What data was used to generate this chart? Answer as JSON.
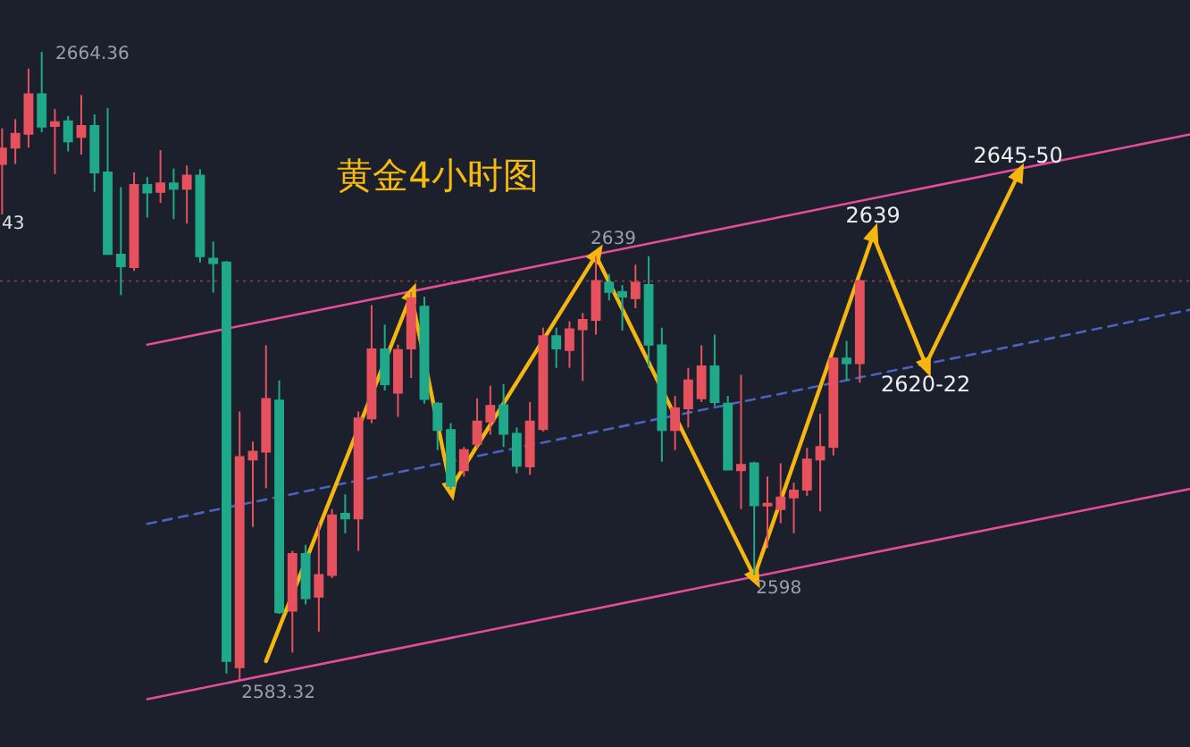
{
  "chart_data": {
    "type": "candlestick",
    "title": "黄金4小时图",
    "categories": [
      null,
      null,
      null,
      null,
      null,
      null,
      null,
      null,
      null,
      null,
      null,
      null,
      null,
      null,
      null,
      null,
      null,
      null,
      null,
      null,
      null,
      null,
      null,
      null,
      null,
      null,
      null,
      null,
      null,
      null,
      null,
      null,
      null,
      null,
      null,
      null,
      null,
      null,
      null,
      null,
      null,
      null,
      null,
      null,
      null,
      null,
      null,
      null,
      null,
      null,
      null,
      null,
      null,
      null,
      null,
      null,
      null,
      null,
      null,
      null,
      null,
      null,
      null,
      null,
      null,
      null,
      null,
      null,
      null,
      null,
      null,
      null,
      null,
      null,
      null,
      null,
      null,
      null,
      null,
      null,
      null,
      null,
      null,
      null,
      null,
      null,
      null,
      null,
      null,
      null,
      null
    ],
    "ohlc": [
      [
        2649.9,
        2654.5,
        2643.4,
        2651.9
      ],
      [
        2652.0,
        2655.7,
        2649.9,
        2653.8
      ],
      [
        2653.8,
        2662.2,
        2652.0,
        2658.9
      ],
      [
        2658.9,
        2664.36,
        2654.0,
        2654.7
      ],
      [
        2654.8,
        2657.0,
        2648.6,
        2655.3
      ],
      [
        2655.4,
        2656.1,
        2651.5,
        2652.8
      ],
      [
        2653.4,
        2658.8,
        2651.1,
        2654.8
      ],
      [
        2654.8,
        2656.3,
        2646.3,
        2648.8
      ],
      [
        2648.8,
        2657.1,
        2638.3,
        2638.3
      ],
      [
        2638.2,
        2646.9,
        2633.0,
        2636.7
      ],
      [
        2636.6,
        2648.8,
        2636.1,
        2647.2
      ],
      [
        2647.2,
        2648.2,
        2643.0,
        2646.2
      ],
      [
        2646.3,
        2651.7,
        2644.9,
        2647.4
      ],
      [
        2647.4,
        2649.3,
        2642.8,
        2646.7
      ],
      [
        2646.7,
        2649.7,
        2642.2,
        2648.4
      ],
      [
        2648.4,
        2649.2,
        2637.2,
        2638.0
      ],
      [
        2637.7,
        2639.9,
        2633.3,
        2637.1
      ],
      [
        2637.2,
        2637.4,
        2584.2,
        2585.8
      ],
      [
        2585.0,
        2618.0,
        2583.32,
        2612.1
      ],
      [
        2611.8,
        2614.1,
        2603.1,
        2612.8
      ],
      [
        2612.8,
        2626.5,
        2608.1,
        2619.6
      ],
      [
        2619.4,
        2622.0,
        2591.9,
        2592.1
      ],
      [
        2592.3,
        2600.0,
        2586.9,
        2599.6
      ],
      [
        2599.6,
        2600.8,
        2593.1,
        2593.9
      ],
      [
        2594.1,
        2603.6,
        2589.6,
        2596.9
      ],
      [
        2596.9,
        2605.4,
        2596.5,
        2604.6
      ],
      [
        2604.8,
        2607.3,
        2602.3,
        2604.2
      ],
      [
        2604.2,
        2618.0,
        2600.0,
        2617.1
      ],
      [
        2617.1,
        2631.7,
        2616.5,
        2626.0
      ],
      [
        2626.0,
        2629.2,
        2620.7,
        2621.5
      ],
      [
        2620.4,
        2626.6,
        2617.3,
        2625.9
      ],
      [
        2626.1,
        2633.4,
        2622.3,
        2632.6
      ],
      [
        2631.5,
        2632.8,
        2619.0,
        2619.6
      ],
      [
        2619.0,
        2619.2,
        2613.0,
        2615.6
      ],
      [
        2615.6,
        2616.5,
        2607.9,
        2608.4
      ],
      [
        2610.4,
        2613.4,
        2609.6,
        2613.0
      ],
      [
        2613.8,
        2619.7,
        2613.3,
        2616.7
      ],
      [
        2616.7,
        2621.3,
        2615.0,
        2618.7
      ],
      [
        2618.8,
        2621.5,
        2613.4,
        2615.1
      ],
      [
        2615.1,
        2615.9,
        2610.0,
        2611.0
      ],
      [
        2610.9,
        2619.2,
        2609.8,
        2616.7
      ],
      [
        2615.7,
        2628.8,
        2615.4,
        2627.7
      ],
      [
        2627.7,
        2628.8,
        2623.6,
        2626.1
      ],
      [
        2625.9,
        2629.6,
        2623.6,
        2628.6
      ],
      [
        2628.6,
        2630.7,
        2621.9,
        2629.8
      ],
      [
        2629.8,
        2638.0,
        2627.9,
        2634.8
      ],
      [
        2634.6,
        2635.7,
        2632.3,
        2633.4
      ],
      [
        2633.4,
        2634.3,
        2628.4,
        2632.8
      ],
      [
        2632.6,
        2636.9,
        2631.3,
        2634.6
      ],
      [
        2634.3,
        2638.0,
        2623.6,
        2626.6
      ],
      [
        2626.5,
        2628.8,
        2611.5,
        2615.6
      ],
      [
        2615.6,
        2620.0,
        2613.0,
        2618.4
      ],
      [
        2618.4,
        2623.6,
        2615.9,
        2622.0
      ],
      [
        2619.7,
        2626.5,
        2619.2,
        2623.8
      ],
      [
        2623.8,
        2627.9,
        2618.7,
        2619.2
      ],
      [
        2619.0,
        2620.0,
        2610.4,
        2610.5
      ],
      [
        2610.4,
        2622.7,
        2605.4,
        2611.1
      ],
      [
        2611.3,
        2611.5,
        2596.9,
        2605.9
      ],
      [
        2605.9,
        2609.6,
        2600.4,
        2606.1
      ],
      [
        2605.4,
        2611.3,
        2603.6,
        2606.9
      ],
      [
        2606.9,
        2608.8,
        2602.3,
        2607.8
      ],
      [
        2607.9,
        2613.3,
        2607.1,
        2611.8
      ],
      [
        2611.8,
        2617.7,
        2605.1,
        2613.4
      ],
      [
        2613.4,
        2625.0,
        2612.3,
        2624.8
      ],
      [
        2624.8,
        2627.1,
        2622.0,
        2624.2
      ],
      [
        2624.2,
        2634.9,
        2621.7,
        2634.8
      ],
      null,
      null,
      null,
      null,
      null,
      null,
      null,
      null,
      null,
      null,
      null,
      null,
      null,
      null,
      null,
      null,
      null,
      null,
      null,
      null,
      null,
      null,
      null,
      null,
      null
    ],
    "colors": [
      "#e5525e",
      "#e5525e",
      "#e5525e",
      "#1fa98a",
      "#e5525e",
      "#1fa98a",
      "#e5525e",
      "#1fa98a",
      "#1fa98a",
      "#1fa98a",
      "#e5525e",
      "#1fa98a",
      "#e5525e",
      "#1fa98a",
      "#e5525e",
      "#1fa98a",
      "#1fa98a",
      "#1fa98a",
      "#e5525e",
      "#e5525e",
      "#e5525e",
      "#1fa98a",
      "#e5525e",
      "#1fa98a",
      "#e5525e",
      "#e5525e",
      "#1fa98a",
      "#e5525e",
      "#e5525e",
      "#1fa98a",
      "#e5525e",
      "#e5525e",
      "#1fa98a",
      "#1fa98a",
      "#1fa98a",
      "#e5525e",
      "#e5525e",
      "#e5525e",
      "#1fa98a",
      "#1fa98a",
      "#e5525e",
      "#e5525e",
      "#1fa98a",
      "#e5525e",
      "#e5525e",
      "#e5525e",
      "#1fa98a",
      "#1fa98a",
      "#e5525e",
      "#1fa98a",
      "#1fa98a",
      "#e5525e",
      "#e5525e",
      "#e5525e",
      "#1fa98a",
      "#1fa98a",
      "#e5525e",
      "#1fa98a",
      "#e5525e",
      "#e5525e",
      "#e5525e",
      "#e5525e",
      "#e5525e",
      "#e5525e",
      "#1fa98a",
      "#e5525e",
      null,
      null,
      null,
      null,
      null,
      null,
      null,
      null,
      null,
      null,
      null,
      null,
      null,
      null,
      null,
      null,
      null,
      null,
      null,
      null,
      null,
      null,
      null,
      null,
      null
    ],
    "series": [
      {
        "type": "line",
        "color": "#e54d9b",
        "line_style": "solid",
        "values": [
          null,
          null,
          null,
          null,
          null,
          null,
          null,
          null,
          null,
          null,
          null,
          2626.6,
          null,
          null,
          null,
          null,
          null,
          null,
          null,
          null,
          null,
          null,
          null,
          null,
          null,
          null,
          null,
          null,
          null,
          null,
          null,
          null,
          null,
          null,
          null,
          null,
          null,
          null,
          null,
          null,
          null,
          null,
          null,
          null,
          null,
          null,
          null,
          null,
          null,
          null,
          null,
          null,
          null,
          null,
          null,
          null,
          null,
          null,
          null,
          null,
          null,
          null,
          null,
          null,
          null,
          null,
          null,
          null,
          null,
          null,
          null,
          null,
          null,
          null,
          null,
          null,
          null,
          null,
          null,
          null,
          null,
          null,
          null,
          null,
          null,
          null,
          null,
          null,
          null,
          null,
          2653.7
        ]
      },
      {
        "type": "line",
        "color": "#4a62c0",
        "line_style": "dashed",
        "values": [
          null,
          null,
          null,
          null,
          null,
          null,
          null,
          null,
          null,
          null,
          null,
          2603.5,
          null,
          null,
          null,
          null,
          null,
          null,
          null,
          null,
          null,
          null,
          null,
          null,
          null,
          null,
          null,
          null,
          null,
          null,
          null,
          null,
          null,
          null,
          null,
          null,
          null,
          null,
          null,
          null,
          null,
          null,
          null,
          null,
          null,
          null,
          null,
          null,
          null,
          null,
          null,
          null,
          null,
          null,
          null,
          null,
          null,
          null,
          null,
          null,
          null,
          null,
          null,
          null,
          null,
          null,
          null,
          null,
          null,
          null,
          null,
          null,
          null,
          null,
          null,
          null,
          null,
          null,
          null,
          null,
          null,
          null,
          null,
          null,
          null,
          null,
          null,
          null,
          null,
          null,
          2631.1
        ]
      },
      {
        "type": "line",
        "color": "#e54d9b",
        "line_style": "solid",
        "values": [
          null,
          null,
          null,
          null,
          null,
          null,
          null,
          null,
          null,
          null,
          null,
          2580.9,
          null,
          null,
          null,
          null,
          null,
          null,
          null,
          null,
          null,
          null,
          null,
          null,
          null,
          null,
          null,
          null,
          null,
          null,
          null,
          null,
          null,
          null,
          null,
          null,
          null,
          null,
          null,
          null,
          null,
          null,
          null,
          null,
          null,
          null,
          null,
          null,
          null,
          null,
          null,
          null,
          null,
          null,
          null,
          null,
          null,
          null,
          null,
          null,
          null,
          null,
          null,
          null,
          null,
          null,
          null,
          null,
          null,
          null,
          null,
          null,
          null,
          null,
          null,
          null,
          null,
          null,
          null,
          null,
          null,
          null,
          null,
          null,
          null,
          null,
          null,
          null,
          null,
          null,
          2608.0
        ]
      },
      {
        "type": "line",
        "color": "#f5b70f",
        "line_style": "solid",
        "marker": "triangle",
        "values": [
          null,
          null,
          null,
          null,
          null,
          null,
          null,
          null,
          null,
          null,
          null,
          null,
          null,
          null,
          null,
          null,
          null,
          null,
          null,
          null,
          2585.8,
          null,
          null,
          null,
          null,
          null,
          null,
          null,
          null,
          null,
          null,
          2633.0,
          null,
          null,
          2608.1,
          null,
          null,
          null,
          null,
          null,
          null,
          null,
          null,
          null,
          null,
          2638.1,
          null,
          null,
          null,
          null,
          null,
          null,
          null,
          null,
          null,
          null,
          null,
          2596.7,
          null,
          null,
          null,
          null,
          null,
          null,
          null,
          null,
          2640.7,
          null,
          null,
          null,
          2624.0,
          null,
          null,
          null,
          null,
          null,
          null,
          2648.5,
          null,
          null,
          null,
          null,
          null,
          null,
          null,
          null,
          null,
          null,
          null,
          null,
          null
        ]
      }
    ],
    "ref_lines": [
      {
        "axis": "y",
        "value": 2634.8,
        "color": "#7d3b48",
        "line_style": "dotted"
      }
    ],
    "annotations": [
      "2664.36",
      "43",
      {
        "text": "2583.32",
        "y": 2583.32
      },
      {
        "text": "2639",
        "y": 2638.0
      },
      {
        "text": "2598",
        "y": 2596.9
      },
      {
        "text": "2639",
        "y": 2640.7
      },
      {
        "text": "2620-22",
        "y": 2624.0
      },
      {
        "text": "2645-50",
        "y": 2648.5
      }
    ],
    "tick_labels": false
  }
}
